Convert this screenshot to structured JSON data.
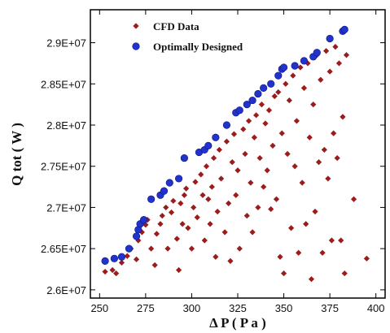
{
  "chart_data": {
    "type": "scatter",
    "xlabel": "Δ P ( P a )",
    "ylabel": "Q tot ( W )",
    "xlim": [
      245,
      405
    ],
    "ylim": [
      25900000,
      29400000
    ],
    "x_ticks": [
      250,
      275,
      300,
      325,
      350,
      375,
      400
    ],
    "y_ticks": [
      26000000,
      26500000,
      27000000,
      27500000,
      28000000,
      28500000,
      29000000
    ],
    "x_tick_labels": [
      "250",
      "275",
      "300",
      "325",
      "350",
      "375",
      "400"
    ],
    "y_tick_labels": [
      "2.6E+07",
      "2.65E+07",
      "2.7E+07",
      "2.75E+07",
      "2.8E+07",
      "2.85E+07",
      "2.9E+07"
    ],
    "grid": false,
    "legend_position": "top-left",
    "series": [
      {
        "name": "CFD Data",
        "marker": "diamond",
        "color": "#9c1c1c",
        "points": [
          [
            253,
            26220000
          ],
          [
            257,
            26240000
          ],
          [
            259,
            26200000
          ],
          [
            262,
            26330000
          ],
          [
            265,
            26410000
          ],
          [
            267,
            26500000
          ],
          [
            270,
            26370000
          ],
          [
            271,
            26600000
          ],
          [
            273,
            26700000
          ],
          [
            275,
            26790000
          ],
          [
            276,
            26850000
          ],
          [
            278,
            26500000
          ],
          [
            280,
            26300000
          ],
          [
            281,
            26680000
          ],
          [
            283,
            26800000
          ],
          [
            284,
            26900000
          ],
          [
            286,
            27000000
          ],
          [
            287,
            26500000
          ],
          [
            289,
            26940000
          ],
          [
            290,
            27080000
          ],
          [
            292,
            26620000
          ],
          [
            293,
            26240000
          ],
          [
            294,
            27050000
          ],
          [
            295,
            26800000
          ],
          [
            296,
            27150000
          ],
          [
            297,
            27230000
          ],
          [
            298,
            26750000
          ],
          [
            300,
            26500000
          ],
          [
            301,
            27000000
          ],
          [
            302,
            27310000
          ],
          [
            303,
            26880000
          ],
          [
            305,
            27400000
          ],
          [
            306,
            27150000
          ],
          [
            307,
            26600000
          ],
          [
            308,
            27500000
          ],
          [
            309,
            27100000
          ],
          [
            310,
            26800000
          ],
          [
            311,
            27250000
          ],
          [
            312,
            27600000
          ],
          [
            313,
            26400000
          ],
          [
            314,
            26950000
          ],
          [
            315,
            27700000
          ],
          [
            316,
            27350000
          ],
          [
            318,
            26700000
          ],
          [
            319,
            27800000
          ],
          [
            320,
            27050000
          ],
          [
            321,
            26350000
          ],
          [
            322,
            27550000
          ],
          [
            323,
            27890000
          ],
          [
            324,
            27150000
          ],
          [
            325,
            27450000
          ],
          [
            326,
            26500000
          ],
          [
            328,
            27950000
          ],
          [
            329,
            27650000
          ],
          [
            330,
            26900000
          ],
          [
            331,
            28050000
          ],
          [
            332,
            27300000
          ],
          [
            333,
            26700000
          ],
          [
            334,
            27850000
          ],
          [
            335,
            28120000
          ],
          [
            336,
            27000000
          ],
          [
            337,
            27600000
          ],
          [
            338,
            28250000
          ],
          [
            339,
            27250000
          ],
          [
            340,
            28020000
          ],
          [
            341,
            27450000
          ],
          [
            342,
            28180000
          ],
          [
            343,
            26980000
          ],
          [
            344,
            27750000
          ],
          [
            345,
            28350000
          ],
          [
            346,
            27100000
          ],
          [
            347,
            28400000
          ],
          [
            348,
            26400000
          ],
          [
            349,
            27900000
          ],
          [
            350,
            26200000
          ],
          [
            351,
            28500000
          ],
          [
            352,
            27650000
          ],
          [
            353,
            28300000
          ],
          [
            354,
            26750000
          ],
          [
            355,
            28600000
          ],
          [
            356,
            27500000
          ],
          [
            357,
            28050000
          ],
          [
            358,
            26450000
          ],
          [
            359,
            28700000
          ],
          [
            360,
            27300000
          ],
          [
            361,
            28450000
          ],
          [
            362,
            26800000
          ],
          [
            363,
            28750000
          ],
          [
            364,
            27850000
          ],
          [
            365,
            26130000
          ],
          [
            366,
            28250000
          ],
          [
            367,
            26950000
          ],
          [
            368,
            28850000
          ],
          [
            369,
            27550000
          ],
          [
            370,
            28550000
          ],
          [
            371,
            26450000
          ],
          [
            372,
            27700000
          ],
          [
            373,
            28900000
          ],
          [
            374,
            27350000
          ],
          [
            375,
            28650000
          ],
          [
            376,
            26600000
          ],
          [
            377,
            27900000
          ],
          [
            378,
            28950000
          ],
          [
            379,
            27600000
          ],
          [
            380,
            28750000
          ],
          [
            381,
            26600000
          ],
          [
            382,
            28100000
          ],
          [
            383,
            26200000
          ],
          [
            384,
            28850000
          ],
          [
            388,
            27100000
          ],
          [
            395,
            26380000
          ]
        ]
      },
      {
        "name": "Optimally Designed",
        "marker": "circle",
        "color": "#2233cc",
        "points": [
          [
            253,
            26350000
          ],
          [
            258,
            26380000
          ],
          [
            262,
            26400000
          ],
          [
            266,
            26500000
          ],
          [
            270,
            26650000
          ],
          [
            271,
            26730000
          ],
          [
            272,
            26800000
          ],
          [
            274,
            26850000
          ],
          [
            278,
            27100000
          ],
          [
            283,
            27150000
          ],
          [
            285,
            27200000
          ],
          [
            288,
            27300000
          ],
          [
            293,
            27350000
          ],
          [
            296,
            27600000
          ],
          [
            304,
            27670000
          ],
          [
            307,
            27700000
          ],
          [
            309,
            27750000
          ],
          [
            313,
            27850000
          ],
          [
            319,
            28000000
          ],
          [
            324,
            28150000
          ],
          [
            326,
            28180000
          ],
          [
            330,
            28250000
          ],
          [
            333,
            28300000
          ],
          [
            336,
            28380000
          ],
          [
            339,
            28450000
          ],
          [
            343,
            28500000
          ],
          [
            347,
            28600000
          ],
          [
            349,
            28680000
          ],
          [
            350,
            28700000
          ],
          [
            356,
            28720000
          ],
          [
            361,
            28780000
          ],
          [
            366,
            28830000
          ],
          [
            368,
            28880000
          ],
          [
            375,
            29050000
          ],
          [
            382,
            29140000
          ],
          [
            383,
            29160000
          ]
        ]
      }
    ]
  }
}
